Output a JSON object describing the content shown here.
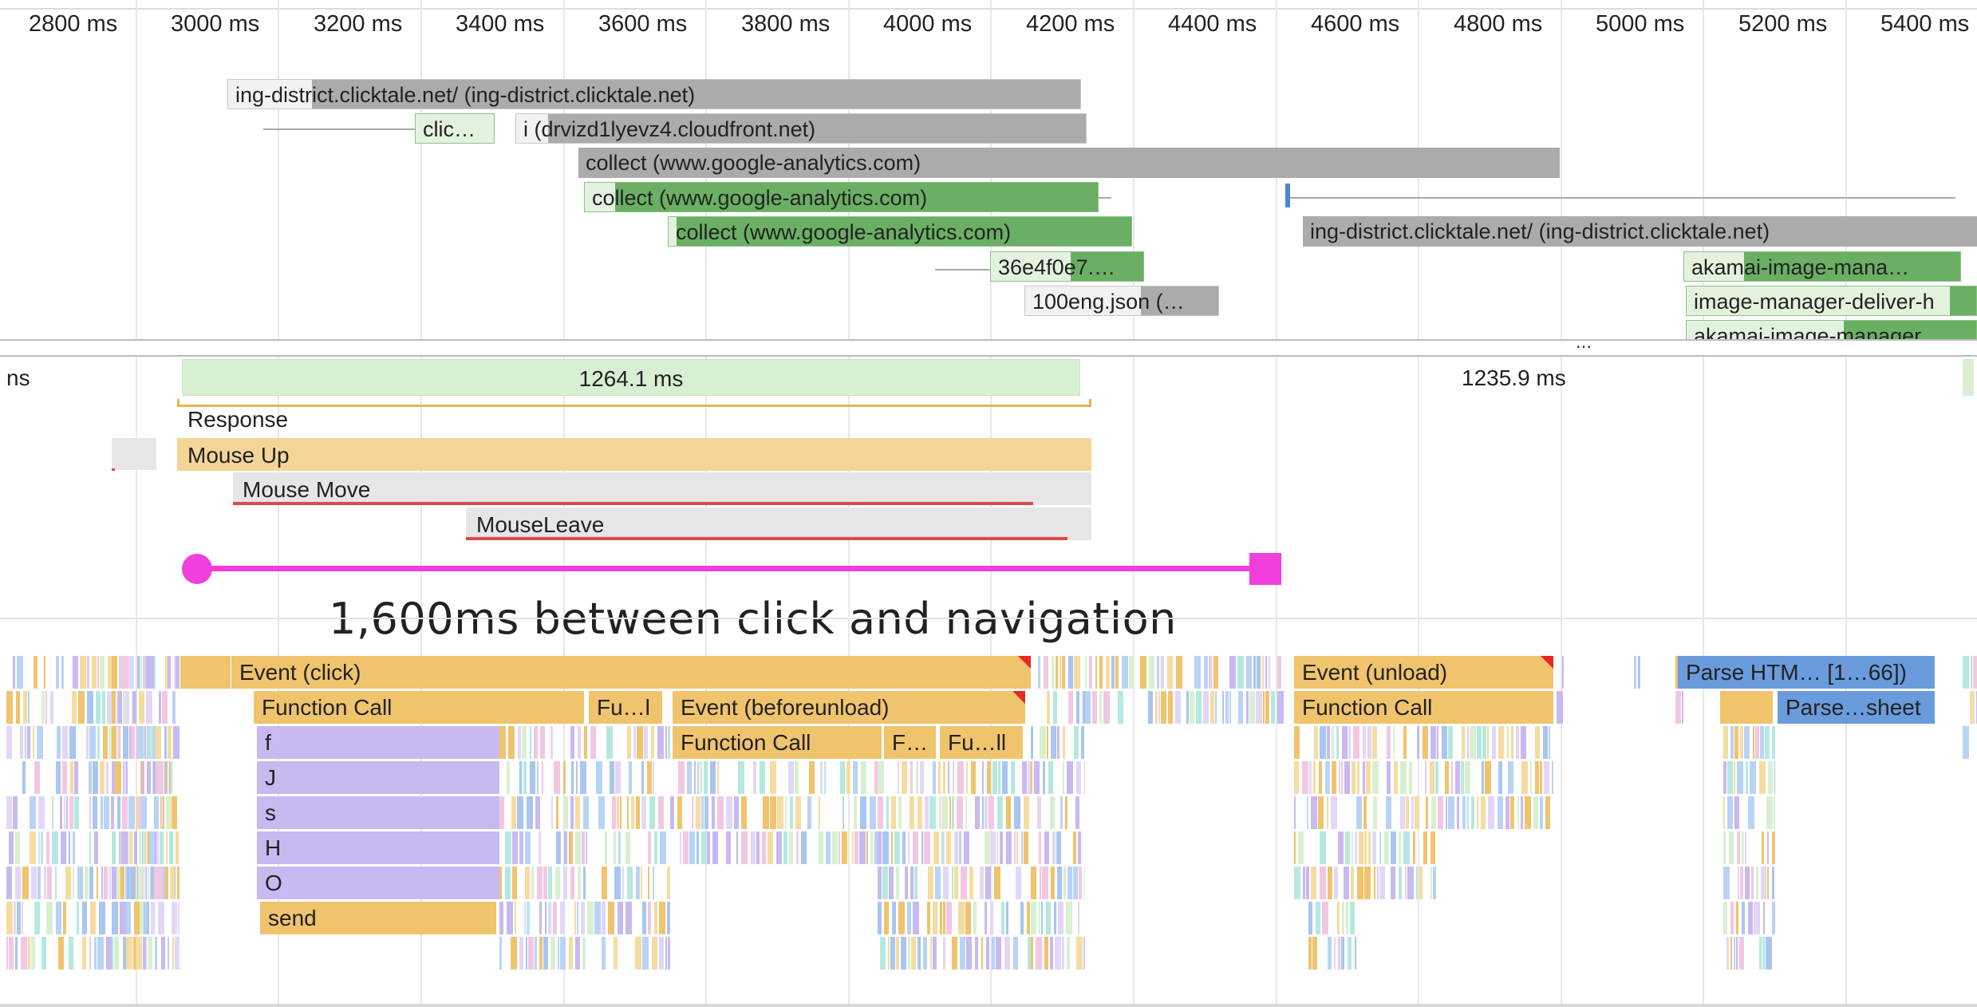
{
  "timeline": {
    "ticks": [
      "2800 ms",
      "3000 ms",
      "3200 ms",
      "3400 ms",
      "3600 ms",
      "3800 ms",
      "4000 ms",
      "4200 ms",
      "4400 ms",
      "4600 ms",
      "4800 ms",
      "5000 ms",
      "5200 ms",
      "5400 ms"
    ]
  },
  "network": {
    "requests": [
      {
        "label": "ing-district.clicktale.net/ (ing-district.clicktale.net)"
      },
      {
        "label": "clic…"
      },
      {
        "label": "i (drvizd1lyevz4.cloudfront.net)"
      },
      {
        "label": "collect (www.google-analytics.com)"
      },
      {
        "label": "collect (www.google-analytics.com)"
      },
      {
        "label": "collect (www.google-analytics.com)"
      },
      {
        "label": "ing-district.clicktale.net/ (ing-district.clicktale.net)"
      },
      {
        "label": "36e4f0e7.…"
      },
      {
        "label": "100eng.json (…"
      },
      {
        "label": "akamai-image-mana…"
      },
      {
        "label": "image-manager-deliver-h"
      },
      {
        "label": "akamai-image-manager"
      }
    ],
    "more": "..."
  },
  "frames": {
    "left_label": "ns",
    "duration_1": "1264.1 ms",
    "duration_2": "1235.9 ms"
  },
  "interactions": {
    "response": "Response",
    "mouse_up": "Mouse Up",
    "mouse_move": "Mouse Move",
    "mouse_leave": "MouseLeave"
  },
  "annotation": {
    "text": "1,600ms between click and navigation",
    "color": "#f03fdc"
  },
  "main_thread": {
    "event_click": "Event (click)",
    "function_call": "Function Call",
    "fu_l": "Fu…l",
    "event_beforeunload": "Event (beforeunload)",
    "function_call_2": "Function Call",
    "f_short": "F…",
    "fu_ll": "Fu…ll",
    "stack": [
      "f",
      "J",
      "s",
      "H",
      "O",
      "send"
    ],
    "event_unload": "Event (unload)",
    "function_call_3": "Function Call",
    "parse_html": "Parse HTM… [1…66])",
    "parse_sheet": "Parse…sheet"
  },
  "colors": {
    "script": "#f0c36d",
    "script_light": "#f5d595",
    "js_frame": "#c8b9f0",
    "network_grey": "#ababab",
    "network_green": "#6aaf63",
    "parse_blue": "#6a9bdc",
    "frame_green": "#d9efd3",
    "long_task": "#e8281f"
  }
}
